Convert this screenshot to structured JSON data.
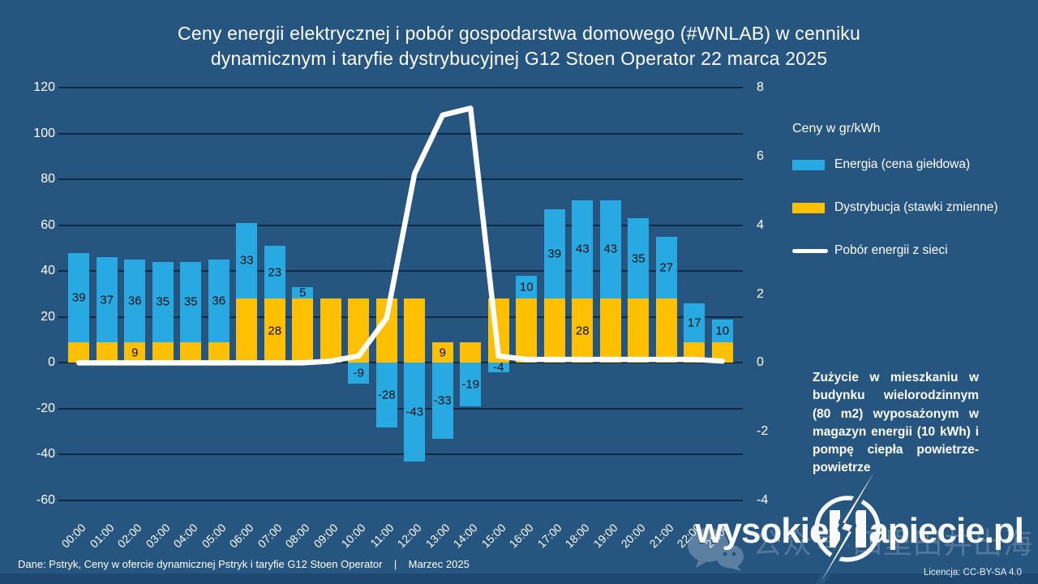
{
  "title": {
    "line1": "Ceny energii elektrycznej i pobór gospodarstwa domowego (#WNLAB) w cenniku",
    "line2": "dynamicznym i taryfie dystrybucyjnej G12 Stoen Operator 22 marca 2025"
  },
  "legend": {
    "header": "Ceny w gr/kWh"
  },
  "annotation": "Zużycie w mieszkaniu w budynku wielorodzinnym (80 m2) wyposażonym w magazyn energii (10 kWh) i pompę ciepła powietrze-powietrze",
  "footer": {
    "text": "Dane: Pstryk, Ceny w ofercie dynamicznej Pstryk i taryfie G12 Stoen Operator    |    Marzec 2025",
    "license": "Licencja: CC-BY-SA 4.0"
  },
  "watermark": {
    "part1": "wysokie",
    "part2": "apiecie.pl",
    "logo_icon": "lightning-bolt-in-circle",
    "cjk_overlay": "公众号·四里田井出海",
    "wechat_icon": "wechat-bubbles"
  },
  "colors": {
    "background": "#26557F",
    "bar_blue": "#29A9E2",
    "bar_yellow": "#FFC003",
    "line_white": "#FFFFFF",
    "gridline": "#0F2A45",
    "footer_strip": "#1D4970",
    "text": "#FFFFFF",
    "bar_label": "#0B0B0B"
  },
  "chart_data": {
    "type": "bar",
    "subtype": "stacked-bars-with-line",
    "title": "Ceny energii elektrycznej i pobór gospodarstwa domowego (#WNLAB) w cenniku dynamicznym i taryfie dystrybucyjnej G12 Stoen Operator 22 marca 2025",
    "categories": [
      "00:00",
      "01:00",
      "02:00",
      "03:00",
      "04:00",
      "05:00",
      "06:00",
      "07:00",
      "08:00",
      "09:00",
      "10:00",
      "11:00",
      "12:00",
      "13:00",
      "14:00",
      "15:00",
      "16:00",
      "17:00",
      "18:00",
      "19:00",
      "20:00",
      "21:00",
      "22:00",
      "23:00"
    ],
    "left_axis": {
      "label": "Ceny w gr/kWh",
      "min": -60,
      "max": 120,
      "step": 20,
      "ticks": [
        120,
        100,
        80,
        60,
        40,
        20,
        0,
        -20,
        -40,
        -60
      ]
    },
    "right_axis": {
      "min": -4,
      "max": 8,
      "step": 2,
      "ticks": [
        8,
        6,
        4,
        2,
        0,
        -2,
        -4
      ]
    },
    "grid": true,
    "legend_position": "right",
    "series": [
      {
        "name": "Energia (cena giełdowa)",
        "type": "bar",
        "axis": "left",
        "color": "#29A9E2",
        "values": [
          39,
          37,
          36,
          35,
          35,
          36,
          33,
          23,
          5,
          0,
          -9,
          -28,
          -43,
          -33,
          -19,
          -4,
          10,
          39,
          43,
          43,
          35,
          27,
          17,
          10
        ],
        "labels": [
          "39",
          "37",
          "36",
          "35",
          "35",
          "36",
          "33",
          "23",
          "5",
          "",
          "-9",
          "-28",
          "-43",
          "-33",
          "-19",
          "-4",
          "10",
          "39",
          "43",
          "43",
          "35",
          "27",
          "17",
          "10"
        ]
      },
      {
        "name": "Dystrybucja (stawki zmienne)",
        "type": "bar",
        "axis": "left",
        "color": "#FFC003",
        "values": [
          9,
          9,
          9,
          9,
          9,
          9,
          28,
          28,
          28,
          28,
          28,
          28,
          28,
          9,
          9,
          28,
          28,
          28,
          28,
          28,
          28,
          28,
          9,
          9
        ],
        "labels": [
          "",
          "",
          "9",
          "",
          "",
          "",
          "",
          "28",
          "",
          "",
          "",
          "",
          "",
          "9",
          "",
          "",
          "",
          "",
          "28",
          "",
          "",
          "",
          "",
          ""
        ]
      },
      {
        "name": "Pobór energii z sieci",
        "type": "line",
        "axis": "right",
        "color": "#FFFFFF",
        "values": [
          0,
          0,
          0,
          0,
          0,
          0,
          0,
          0,
          0,
          0.05,
          0.2,
          1.3,
          5.5,
          7.2,
          7.4,
          0.2,
          0.1,
          0.1,
          0.1,
          0.1,
          0.1,
          0.1,
          0.1,
          0.05
        ]
      }
    ]
  }
}
